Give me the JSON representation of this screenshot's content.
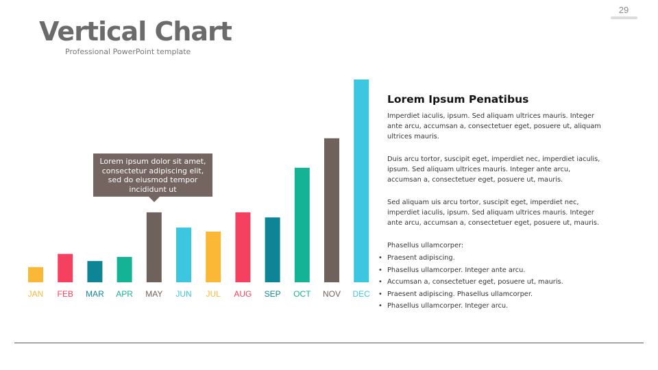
{
  "slide": {
    "page_number": "29",
    "title": "Vertical Chart",
    "subtitle": "Professional PowerPoint template"
  },
  "callout": {
    "text": "Lorem ipsum dolor sit amet, consectetur adipiscing elit, sed do eiusmod tempor incididunt ut"
  },
  "panel": {
    "heading": "Lorem Ipsum Penatibus",
    "paragraphs": [
      "Imperdiet iaculis, ipsum. Sed aliquam ultrices mauris. Integer ante arcu, accumsan a, consectetuer eget, posuere ut, aliquam ultrices mauris.",
      "Duis arcu tortor, suscipit eget, imperdiet nec, imperdiet iaculis, ipsum. Sed aliquam ultrices mauris. Integer ante arcu, accumsan a, consectetuer eget, posuere ut, mauris.",
      "Sed aliquam  uis arcu tortor, suscipit eget, imperdiet nec, imperdiet iaculis, ipsum. Sed aliquam ultrices mauris. Integer ante arcu, accumsan a, consectetuer eget, posuere ut, mauris."
    ],
    "list_intro": "Phasellus ullamcorper:",
    "bullets": [
      "Praesent adipiscing.",
      "Phasellus ullamcorper. Integer ante arcu.",
      "Accumsan a, consectetuer eget, posuere ut, mauris.",
      "Praesent adipiscing. Phasellus ullamcorper.",
      "Phasellus ullamcorper. Integer arcu."
    ],
    "bullet_glyph": "•"
  },
  "chart_data": {
    "type": "bar",
    "categories": [
      "JAN",
      "FEB",
      "MAR",
      "APR",
      "MAY",
      "JUN",
      "JUL",
      "AUG",
      "SEP",
      "OCT",
      "NOV",
      "DEC"
    ],
    "values": [
      7.5,
      14,
      10.5,
      12.5,
      34.5,
      27,
      25,
      34.5,
      32,
      56.5,
      71,
      100
    ],
    "colors": [
      "#fbb836",
      "#f5415f",
      "#0e8497",
      "#14b396",
      "#6f625c",
      "#3cc6e0",
      "#fbb836",
      "#f5415f",
      "#0e8497",
      "#14b396",
      "#6f625c",
      "#3cc6e0"
    ],
    "ylim": [
      0,
      100
    ],
    "grid": false,
    "legend": "none",
    "title": "",
    "xlabel": "",
    "ylabel": ""
  }
}
